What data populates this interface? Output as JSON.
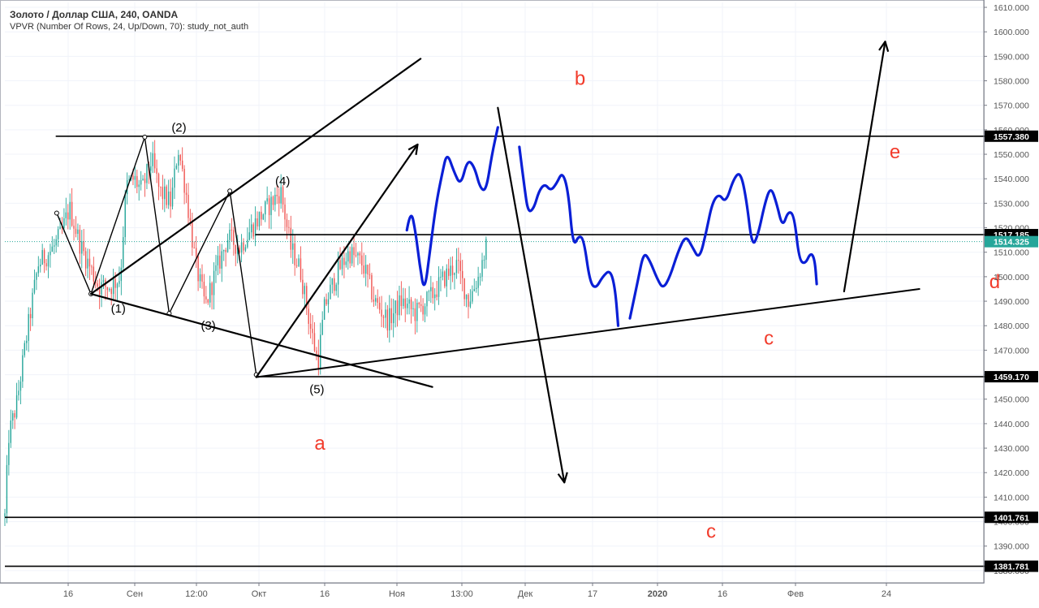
{
  "chart_data": {
    "type": "line",
    "title": "Золото / Доллар США, 240, OANDA",
    "subtitle": "VPVR (Number Of Rows, 24, Up/Down, 70): study_not_auth",
    "ylim": [
      1375,
      1612
    ],
    "y_ticks": [
      1610,
      1600,
      1590,
      1580,
      1570,
      1560,
      1550,
      1540,
      1530,
      1520,
      1510,
      1500,
      1490,
      1480,
      1470,
      1460,
      1450,
      1440,
      1430,
      1420,
      1410,
      1400,
      1390,
      1380
    ],
    "y_tick_labels": [
      "1610.000",
      "1600.000",
      "1590.000",
      "1580.000",
      "1570.000",
      "1560.000",
      "1550.000",
      "1540.000",
      "1530.000",
      "1520.000",
      "1510.000",
      "1500.000",
      "1490.000",
      "1480.000",
      "1470.000",
      "1460.000",
      "1450.000",
      "1440.000",
      "1430.000",
      "1420.000",
      "1410.000",
      "1400.000",
      "1390.000",
      "1380.000"
    ],
    "x_ticks": [
      {
        "index": 0,
        "label": "16",
        "bold": false
      },
      {
        "index": 1,
        "label": "Сен",
        "bold": false
      },
      {
        "index": 2,
        "label": "12:00",
        "bold": false
      },
      {
        "index": 3,
        "label": "Окт",
        "bold": false
      },
      {
        "index": 4,
        "label": "16",
        "bold": false
      },
      {
        "index": 5,
        "label": "Ноя",
        "bold": false
      },
      {
        "index": 6,
        "label": "13:00",
        "bold": false
      },
      {
        "index": 7,
        "label": "Дек",
        "bold": false
      },
      {
        "index": 8,
        "label": "17",
        "bold": false
      },
      {
        "index": 9,
        "label": "2020",
        "bold": true
      },
      {
        "index": 10,
        "label": "16",
        "bold": false
      },
      {
        "index": 11,
        "label": "Фев",
        "bold": false
      },
      {
        "index": 12,
        "label": "24",
        "bold": false
      }
    ],
    "price_levels": [
      {
        "value": 1557.38,
        "label": "1557.380",
        "style": "dark"
      },
      {
        "value": 1517.185,
        "label": "1517.185",
        "style": "dark"
      },
      {
        "value": 1514.325,
        "label": "1514.325",
        "style": "current"
      },
      {
        "value": 1459.17,
        "label": "1459.170",
        "style": "dark"
      },
      {
        "value": 1401.761,
        "label": "1401.761",
        "style": "dark"
      },
      {
        "value": 1381.781,
        "label": "1381.781",
        "style": "dark"
      }
    ],
    "wave_labels_black": [
      {
        "text": "(1)",
        "t": 0.116,
        "y": 1487
      },
      {
        "text": "(2)",
        "t": 0.178,
        "y": 1561
      },
      {
        "text": "(3)",
        "t": 0.208,
        "y": 1480
      },
      {
        "text": "(4)",
        "t": 0.284,
        "y": 1539
      },
      {
        "text": "(5)",
        "t": 0.319,
        "y": 1454
      }
    ],
    "wave_labels_red": [
      {
        "text": "b",
        "t": 0.588,
        "y": 1581
      },
      {
        "text": "e",
        "t": 0.91,
        "y": 1551
      },
      {
        "text": "c",
        "t": 0.781,
        "y": 1475
      },
      {
        "text": "d",
        "t": 1.012,
        "y": 1498
      },
      {
        "text": "a",
        "t": 0.322,
        "y": 1432
      },
      {
        "text": "c",
        "t": 0.722,
        "y": 1396
      }
    ],
    "colors": {
      "up": "#26a69a",
      "down": "#ef5350",
      "projection": "#0a1fd6",
      "annotation": "#f23b2b",
      "lines": "#000000",
      "current_price": "#26a69a"
    }
  }
}
